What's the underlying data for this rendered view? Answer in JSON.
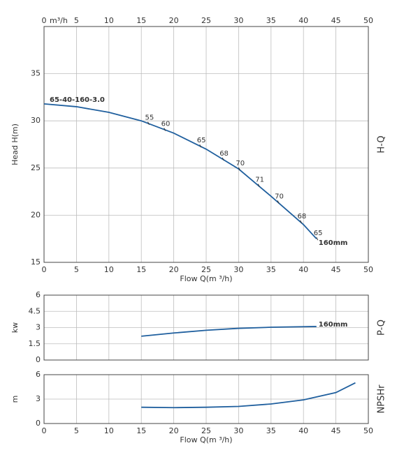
{
  "chart_data": [
    {
      "type": "line",
      "ylabel": "Head H(m)",
      "side_label": "H-Q",
      "xlabel": "Flow Q(m ³/h)",
      "top_unit": "m³/h",
      "xlim": [
        0,
        50
      ],
      "xticks": [
        0,
        5,
        10,
        15,
        20,
        25,
        30,
        35,
        40,
        45,
        50
      ],
      "ylim": [
        15,
        40
      ],
      "yticks": [
        15,
        20,
        25,
        30,
        35
      ],
      "grid": true,
      "x": [
        0,
        5,
        10,
        15,
        20,
        25,
        30,
        35,
        40,
        42
      ],
      "series": [
        {
          "color": "#1f5f9e",
          "values": [
            31.8,
            31.5,
            30.9,
            30.0,
            28.7,
            27.0,
            24.9,
            22.0,
            19.0,
            17.5
          ]
        }
      ],
      "curve_label": "65-40-160-3.0",
      "end_label": "160mm",
      "efficiency": {
        "x": [
          16,
          18.5,
          24,
          27.5,
          30,
          33,
          36,
          39.5,
          42
        ],
        "labels": [
          55,
          60,
          65,
          68,
          70,
          71,
          70,
          68,
          65
        ]
      }
    },
    {
      "type": "line",
      "ylabel": "kw",
      "side_label": "P-Q",
      "xlim": [
        0,
        50
      ],
      "ylim": [
        0,
        6
      ],
      "yticks": [
        0,
        1.5,
        3,
        4.5,
        6
      ],
      "grid": true,
      "x": [
        15,
        20,
        25,
        30,
        35,
        40,
        42
      ],
      "series": [
        {
          "color": "#1f5f9e",
          "values": [
            2.2,
            2.5,
            2.75,
            2.93,
            3.03,
            3.08,
            3.1
          ]
        }
      ],
      "end_label": "160mm"
    },
    {
      "type": "line",
      "ylabel": "m",
      "side_label": "NPSHr",
      "xlabel": "Flow Q(m ³/h)",
      "xlim": [
        0,
        50
      ],
      "xticks": [
        0,
        5,
        10,
        15,
        20,
        25,
        30,
        35,
        40,
        45,
        50
      ],
      "ylim": [
        0,
        6
      ],
      "yticks": [
        0,
        3,
        6
      ],
      "grid": true,
      "x": [
        15,
        20,
        25,
        30,
        35,
        40,
        45,
        48
      ],
      "series": [
        {
          "color": "#1f5f9e",
          "values": [
            2.0,
            1.95,
            2.0,
            2.1,
            2.4,
            2.9,
            3.8,
            5.0
          ]
        }
      ]
    }
  ]
}
